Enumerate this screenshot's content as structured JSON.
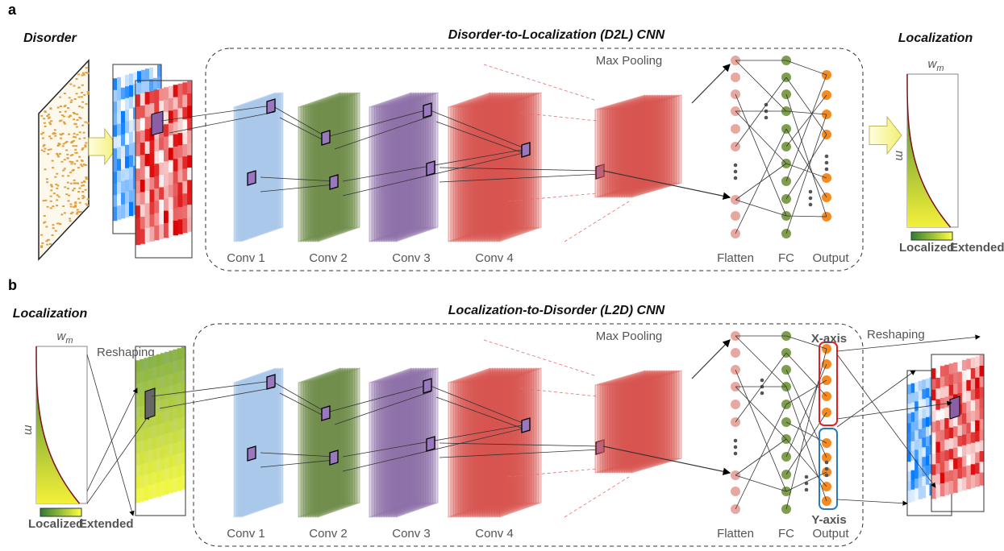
{
  "panels": [
    {
      "label": "a",
      "title": "Disorder-to-Localization (D2L) CNN",
      "input_label": "Disorder",
      "output_label": "Localization",
      "layers": [
        "Conv 1",
        "Conv 2",
        "Conv 3",
        "Conv 4"
      ],
      "pooling": "Max Pooling",
      "dense": [
        "Flatten",
        "FC",
        "Output"
      ],
      "plot": {
        "x_label": {
          "symbol": "w",
          "subscript": "m"
        },
        "y_label": "m",
        "colorbar": [
          "Localized",
          "Extended"
        ]
      }
    },
    {
      "label": "b",
      "title": "Localization-to-Disorder (L2D) CNN",
      "input_label": "Localization",
      "layers": [
        "Conv 1",
        "Conv 2",
        "Conv 3",
        "Conv 4"
      ],
      "pooling": "Max Pooling",
      "dense": [
        "Flatten",
        "FC",
        "Output"
      ],
      "plot": {
        "x_label": {
          "symbol": "w",
          "subscript": "m"
        },
        "y_label": "m",
        "colorbar": [
          "Localized",
          "Extended"
        ]
      },
      "reshaping": [
        "Reshaping",
        "Reshaping"
      ],
      "output_axes": [
        "X-axis",
        "Y-axis"
      ]
    }
  ]
}
